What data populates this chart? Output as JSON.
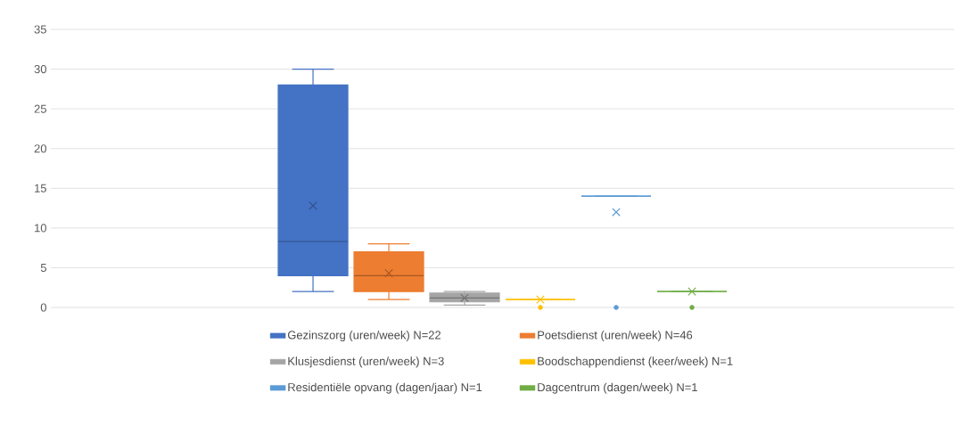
{
  "chart_data": {
    "type": "box",
    "categories": [
      null
    ],
    "ylim": [
      0,
      35
    ],
    "yticks": [
      0,
      5,
      10,
      15,
      20,
      25,
      30,
      35
    ],
    "grid": "y",
    "legend": "bottom",
    "series": [
      {
        "name": "Gezinszorg (uren/week) N=22",
        "color": "#4472c4",
        "boxes": [
          {
            "low": 2,
            "q1": 4,
            "median": 8.3,
            "q3": 28,
            "high": 30,
            "mean": 12.8
          }
        ]
      },
      {
        "name": "Poetsdienst (uren/week) N=46",
        "color": "#ed7d31",
        "boxes": [
          {
            "low": 1,
            "q1": 2,
            "median": 4,
            "q3": 7,
            "high": 8,
            "mean": 4.3
          }
        ]
      },
      {
        "name": "Klusjesdienst (uren/week) N=3",
        "color": "#a5a5a5",
        "boxes": [
          {
            "low": 0.3,
            "q1": 0.7,
            "median": 1.2,
            "q3": 1.8,
            "high": 2,
            "mean": 1.2
          }
        ]
      },
      {
        "name": "Boodschappendienst (keer/week) N=1",
        "color": "#ffc000",
        "boxes": [
          {
            "low": 1,
            "q1": 1,
            "median": 1,
            "q3": 1,
            "high": 1,
            "mean": 1,
            "outliers": [
              0
            ]
          }
        ]
      },
      {
        "name": "Residentiële opvang (dagen/jaar) N=1",
        "color": "#5b9bd5",
        "boxes": [
          {
            "low": 14,
            "q1": 14,
            "median": 14,
            "q3": 14,
            "high": 14,
            "mean": 12,
            "outliers": [
              0
            ]
          }
        ]
      },
      {
        "name": "Dagcentrum (dagen/week) N=1",
        "color": "#70ad47",
        "boxes": [
          {
            "low": 2,
            "q1": 2,
            "median": 2,
            "q3": 2,
            "high": 2,
            "mean": 2,
            "outliers": [
              0
            ]
          }
        ]
      }
    ]
  }
}
